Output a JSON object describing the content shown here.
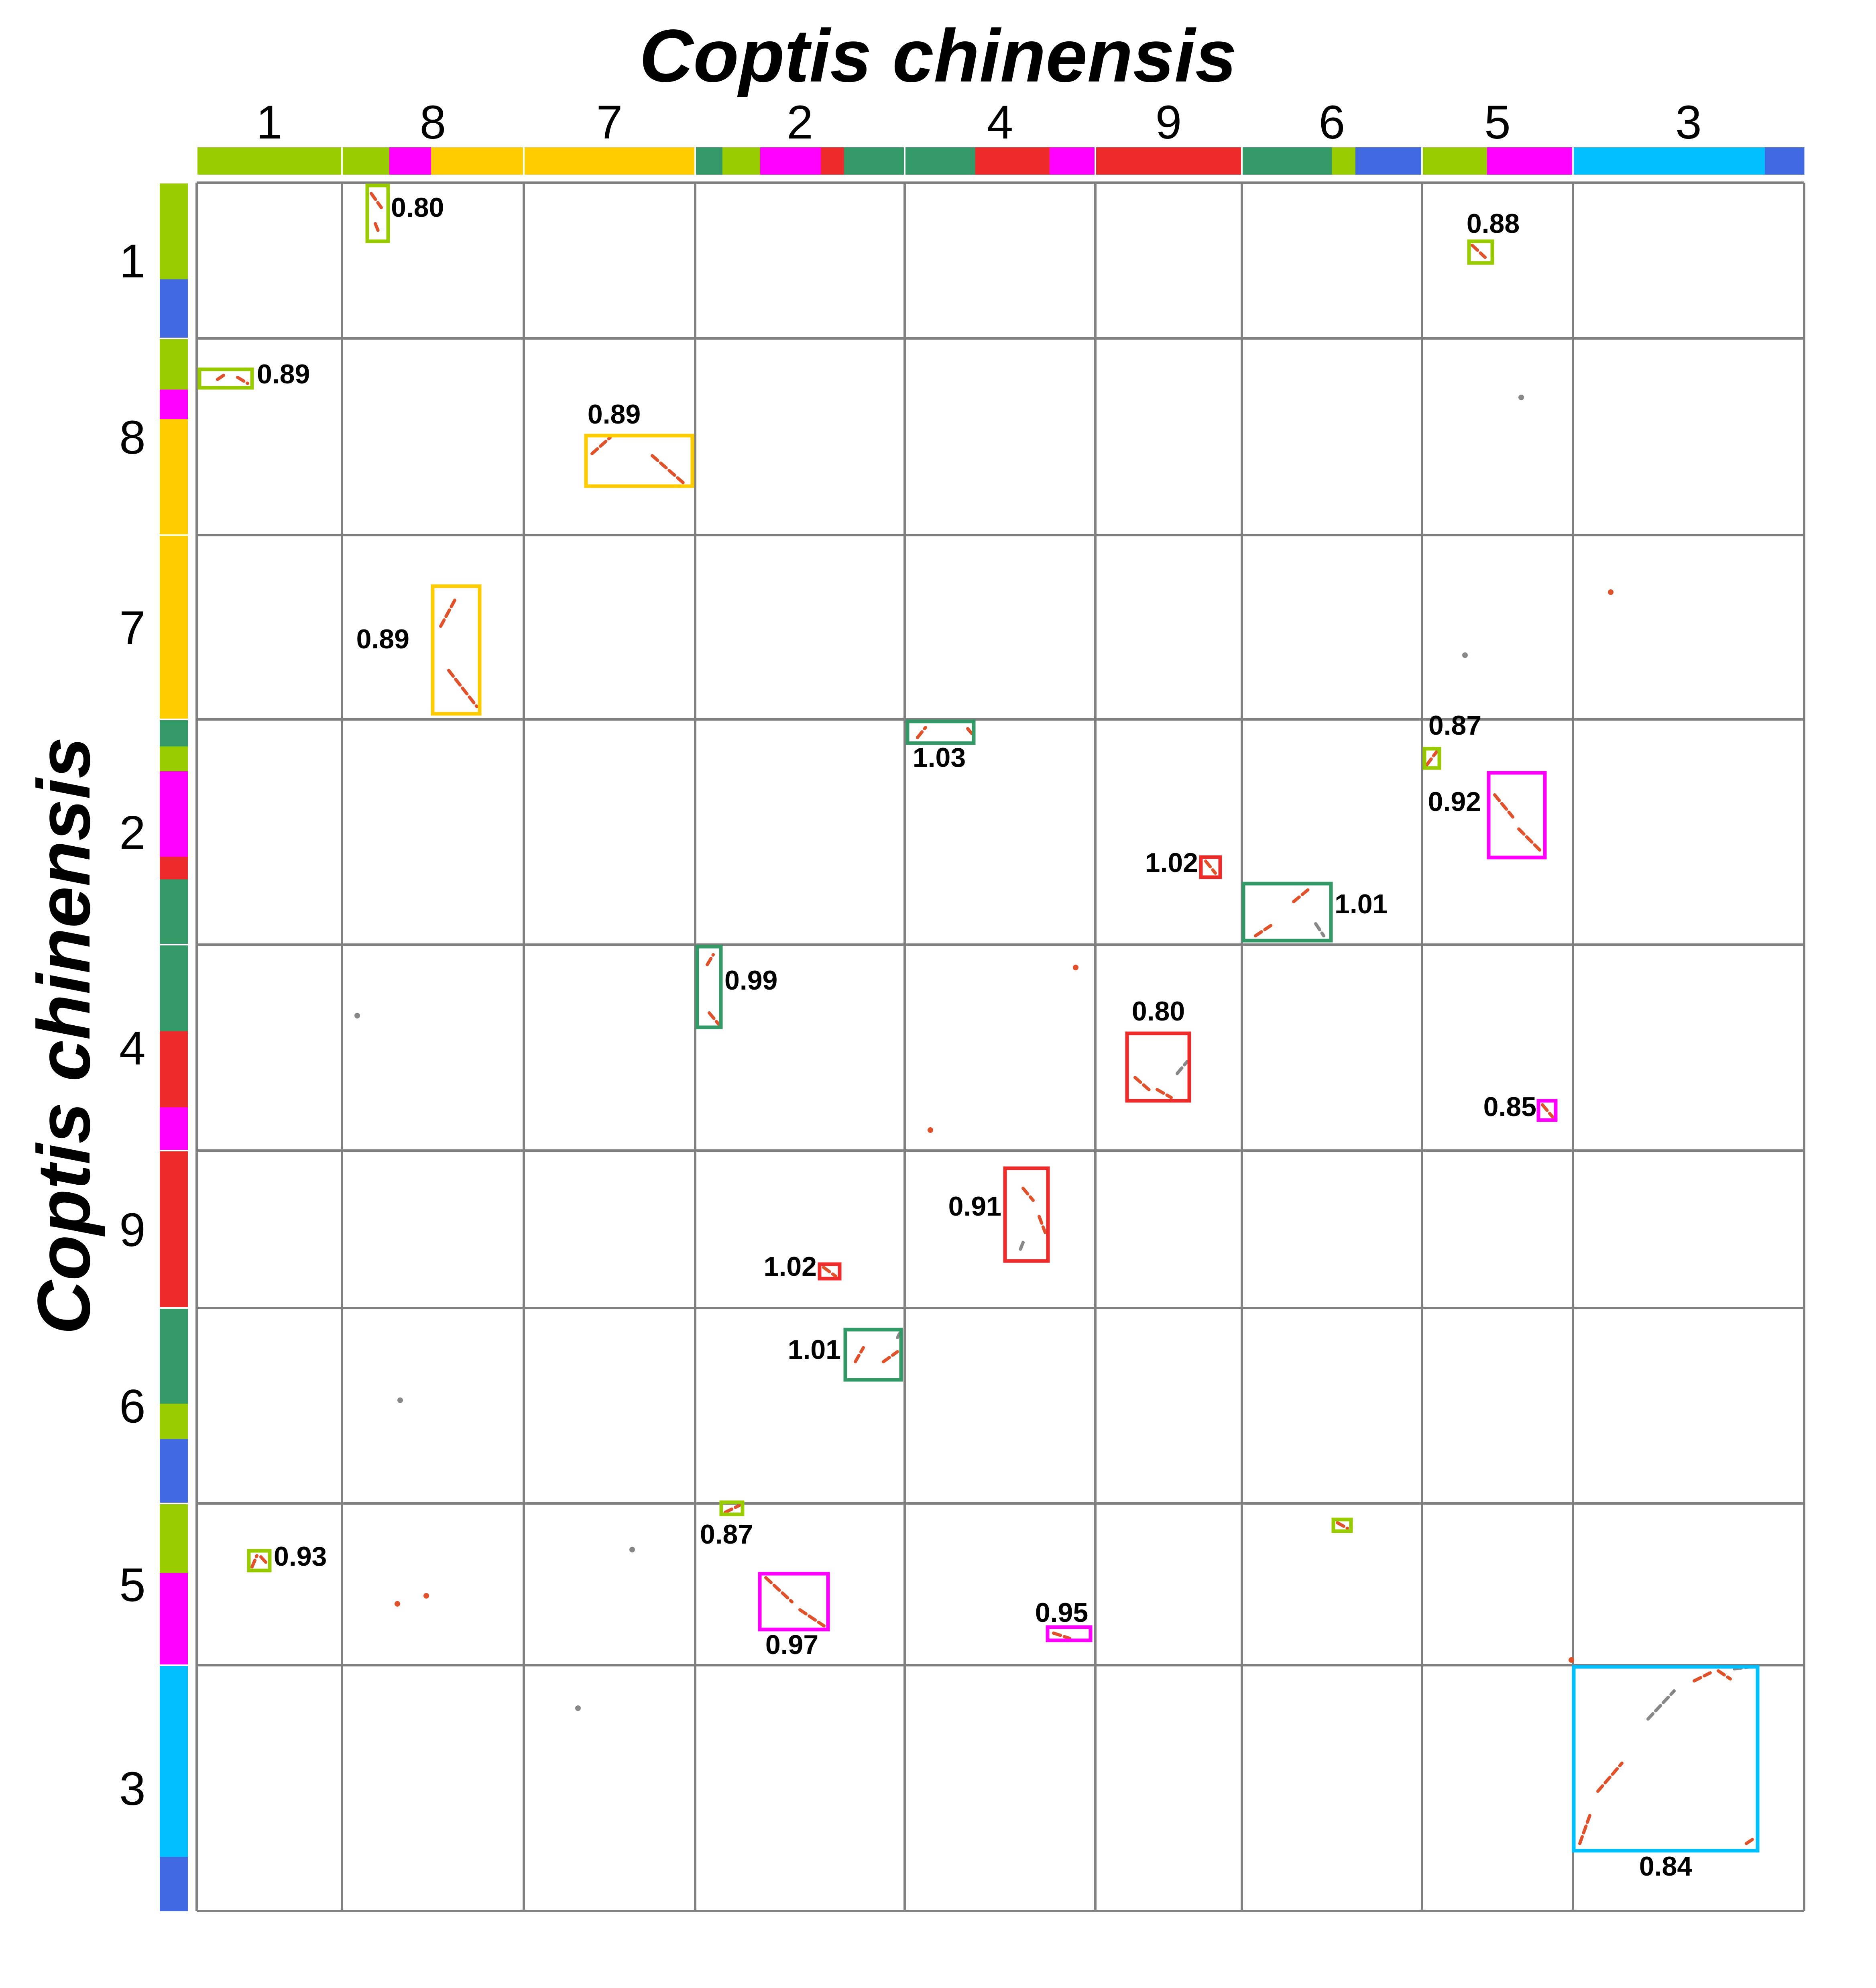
{
  "x_title": "Coptis chinensis",
  "y_title": "Coptis chinensis",
  "chromosomes": [
    "1",
    "8",
    "7",
    "2",
    "4",
    "9",
    "6",
    "5",
    "3"
  ],
  "colors": {
    "lime": "#99CC00",
    "magenta": "#FF00FF",
    "gold": "#FFCC00",
    "seagreen": "#339966",
    "red": "#EE2B2B",
    "royalblue": "#4169E1",
    "skyblue": "#00BFFF",
    "grid": "#808080",
    "dot": "#E0522B",
    "dot_alt": "#888888"
  },
  "top_bar": [
    [
      [
        "lime",
        1
      ]
    ],
    [
      [
        "lime",
        0.26
      ],
      [
        "magenta",
        0.23
      ],
      [
        "gold",
        0.51
      ]
    ],
    [
      [
        "gold",
        1
      ]
    ],
    [
      [
        "seagreen",
        0.13
      ],
      [
        "lime",
        0.18
      ],
      [
        "magenta",
        0.29
      ],
      [
        "red",
        0.11
      ],
      [
        "seagreen",
        0.29
      ]
    ],
    [
      [
        "seagreen",
        0.37
      ],
      [
        "red",
        0.39
      ],
      [
        "magenta",
        0.24
      ]
    ],
    [
      [
        "red",
        1
      ]
    ],
    [
      [
        "seagreen",
        0.5
      ],
      [
        "lime",
        0.13
      ],
      [
        "royalblue",
        0.37
      ]
    ],
    [
      [
        "lime",
        0.43
      ],
      [
        "magenta",
        0.57
      ]
    ],
    [
      [
        "skyblue",
        0.83
      ],
      [
        "royalblue",
        0.17
      ]
    ]
  ],
  "left_bar": [
    [
      [
        "lime",
        0.62
      ],
      [
        "royalblue",
        0.38
      ]
    ],
    [
      [
        "lime",
        0.26
      ],
      [
        "magenta",
        0.15
      ],
      [
        "gold",
        0.59
      ]
    ],
    [
      [
        "gold",
        1
      ]
    ],
    [
      [
        "seagreen",
        0.12
      ],
      [
        "lime",
        0.11
      ],
      [
        "magenta",
        0.38
      ],
      [
        "red",
        0.1
      ],
      [
        "seagreen",
        0.29
      ]
    ],
    [
      [
        "seagreen",
        0.42
      ],
      [
        "red",
        0.37
      ],
      [
        "magenta",
        0.21
      ]
    ],
    [
      [
        "red",
        1
      ]
    ],
    [
      [
        "seagreen",
        0.49
      ],
      [
        "lime",
        0.18
      ],
      [
        "royalblue",
        0.33
      ]
    ],
    [
      [
        "lime",
        0.43
      ],
      [
        "magenta",
        0.57
      ]
    ],
    [
      [
        "skyblue",
        0.78
      ],
      [
        "royalblue",
        0.22
      ]
    ]
  ],
  "blocks": [
    {
      "col": 1,
      "row": 0,
      "color": "lime",
      "label": "0.80"
    },
    {
      "col": 7,
      "row": 0,
      "color": "lime",
      "label": "0.88"
    },
    {
      "col": 0,
      "row": 1,
      "color": "lime",
      "label": "0.89"
    },
    {
      "col": 2,
      "row": 1,
      "color": "gold",
      "label": "0.89"
    },
    {
      "col": 1,
      "row": 2,
      "color": "gold",
      "label": "0.89"
    },
    {
      "col": 4,
      "row": 3,
      "color": "seagreen",
      "label": "1.03"
    },
    {
      "col": 7,
      "row": 3,
      "color": "lime",
      "label": "0.87"
    },
    {
      "col": 7,
      "row": 3,
      "color": "magenta",
      "label": "0.92"
    },
    {
      "col": 5,
      "row": 3,
      "color": "red",
      "label": "1.02"
    },
    {
      "col": 6,
      "row": 3,
      "color": "seagreen",
      "label": "1.01"
    },
    {
      "col": 3,
      "row": 4,
      "color": "seagreen",
      "label": "0.99"
    },
    {
      "col": 5,
      "row": 4,
      "color": "red",
      "label": "0.80"
    },
    {
      "col": 7,
      "row": 4,
      "color": "magenta",
      "label": "0.85"
    },
    {
      "col": 4,
      "row": 5,
      "color": "red",
      "label": "0.91"
    },
    {
      "col": 3,
      "row": 5,
      "color": "red",
      "label": "1.02"
    },
    {
      "col": 3,
      "row": 6,
      "color": "seagreen",
      "label": "1.01"
    },
    {
      "col": 3,
      "row": 7,
      "color": "lime",
      "label": "0.87"
    },
    {
      "col": 0,
      "row": 7,
      "color": "lime",
      "label": "0.93"
    },
    {
      "col": 3,
      "row": 7,
      "color": "magenta",
      "label": "0.97"
    },
    {
      "col": 4,
      "row": 7,
      "color": "magenta",
      "label": "0.95"
    },
    {
      "col": 6,
      "row": 7,
      "color": "lime",
      "label": ""
    },
    {
      "col": 8,
      "row": 8,
      "color": "skyblue",
      "label": "0.84"
    }
  ]
}
